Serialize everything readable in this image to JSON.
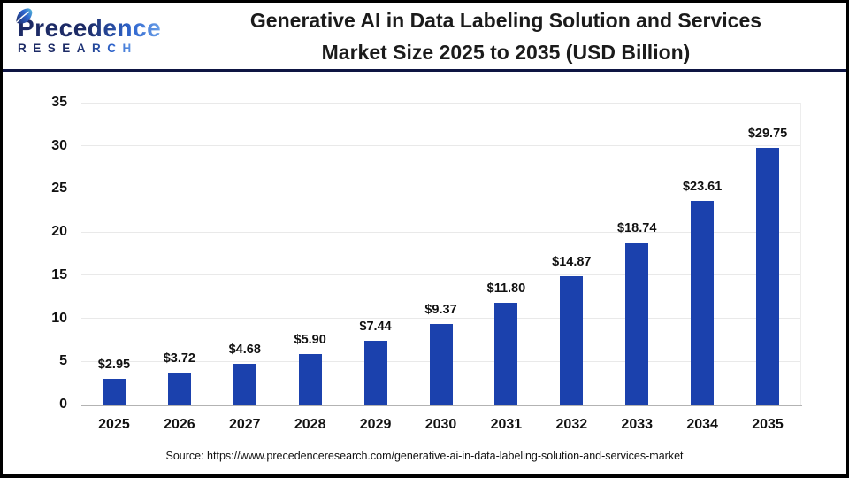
{
  "header": {
    "logo": {
      "brand": "Precedence",
      "brand_sub": "RESEARCH"
    },
    "title_line1": "Generative AI in Data Labeling Solution and Services",
    "title_line2": "Market Size 2025 to 2035 (USD Billion)"
  },
  "chart_data": {
    "type": "bar",
    "title": "Generative AI in Data Labeling Solution and Services Market Size 2025 to 2035 (USD Billion)",
    "unit": "USD Billion",
    "categories": [
      "2025",
      "2026",
      "2027",
      "2028",
      "2029",
      "2030",
      "2031",
      "2032",
      "2033",
      "2034",
      "2035"
    ],
    "values": [
      2.95,
      3.72,
      4.68,
      5.9,
      7.44,
      9.37,
      11.8,
      14.87,
      18.74,
      23.61,
      29.75
    ],
    "value_labels": [
      "$2.95",
      "$3.72",
      "$4.68",
      "$5.90",
      "$7.44",
      "$9.37",
      "$11.80",
      "$14.87",
      "$18.74",
      "$23.61",
      "$29.75"
    ],
    "ylim": [
      0,
      35
    ],
    "yticks": [
      0,
      5,
      10,
      15,
      20,
      25,
      30,
      35
    ],
    "grid": true,
    "legend_position": "none",
    "bar_color": "#1b41ad",
    "xlabel": "",
    "ylabel": ""
  },
  "footer": {
    "source": "Source: https://www.precedenceresearch.com/generative-ai-in-data-labeling-solution-and-services-market"
  },
  "colors": {
    "bar": "#1b41ad",
    "header_rule": "#0e1543",
    "logo_navy": "#1d2b66",
    "logo_blue": "#4b8be0",
    "gridline": "#e9e9e9",
    "baseline": "#b3b3b3",
    "text": "#1b1b1b"
  }
}
